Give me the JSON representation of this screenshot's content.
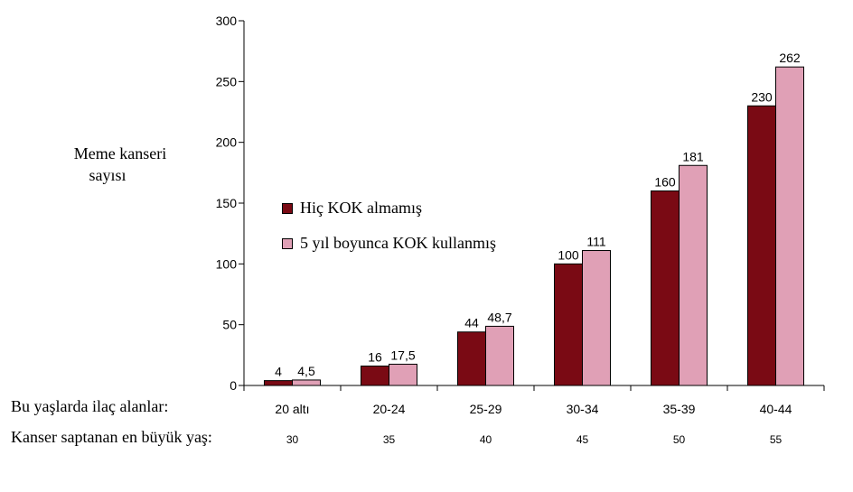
{
  "chart_data": {
    "type": "bar",
    "ylabel_line1": "Meme kanseri",
    "ylabel_line2": "sayısı",
    "ylim": [
      0,
      300
    ],
    "yticks": [
      0,
      50,
      100,
      150,
      200,
      250,
      300
    ],
    "categories": [
      "20 altı",
      "20-24",
      "25-29",
      "30-34",
      "35-39",
      "40-44"
    ],
    "row1_label": "Bu yaşlarda ilaç alanlar:",
    "row2_label": "Kanser saptanan en büyük yaş:",
    "row2_values": [
      "30",
      "35",
      "40",
      "45",
      "50",
      "55"
    ],
    "series": [
      {
        "name": "Hiç KOK almamış",
        "color": "#7a0a14",
        "values": [
          4,
          16,
          44,
          100,
          160,
          230
        ],
        "labels": [
          "4",
          "16",
          "44",
          "100",
          "160",
          "230"
        ]
      },
      {
        "name": "5 yıl boyunca KOK kullanmış",
        "color": "#e0a0b6",
        "values": [
          4.5,
          17.5,
          48.7,
          111,
          181,
          262
        ],
        "labels": [
          "4,5",
          "17,5",
          "48,7",
          "111",
          "181",
          "262"
        ]
      }
    ],
    "legend_position": "left-center"
  }
}
